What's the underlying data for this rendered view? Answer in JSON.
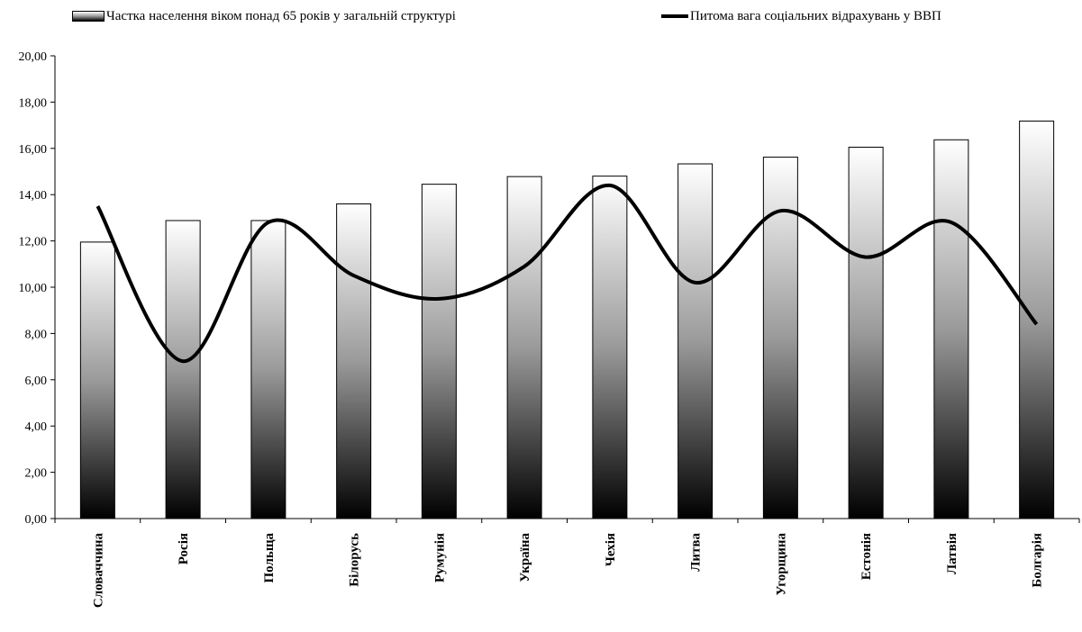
{
  "chart_data": {
    "type": "bar",
    "categories": [
      "Словаччина",
      "Росія",
      "Польща",
      "Білорусь",
      "Румунія",
      "Україна",
      "Чехія",
      "Литва",
      "Угорщина",
      "Естонія",
      "Латвія",
      "Болгарія"
    ],
    "series": [
      {
        "name": "Частка населення віком понад 65 років у загальній структурі",
        "type": "bar",
        "values": [
          11.95,
          12.88,
          12.88,
          13.6,
          14.45,
          14.78,
          14.8,
          15.33,
          15.62,
          16.05,
          16.37,
          17.18
        ]
      },
      {
        "name": "Питома вага соціальних відрахувань у ВВП",
        "type": "line",
        "smooth": true,
        "values": [
          13.5,
          6.8,
          12.8,
          10.5,
          9.5,
          10.9,
          14.4,
          10.2,
          13.3,
          11.3,
          12.8,
          8.4
        ]
      }
    ],
    "yticks": [
      "0,00",
      "2,00",
      "4,00",
      "6,00",
      "8,00",
      "10,00",
      "12,00",
      "14,00",
      "16,00",
      "18,00",
      "20,00"
    ],
    "ylim": [
      0,
      20
    ],
    "title": "",
    "xlabel": "",
    "ylabel": "",
    "grid": false,
    "legend_position": "top",
    "colors": {
      "bar_top": "#ffffff",
      "bar_bottom": "#000000",
      "line": "#000000"
    }
  }
}
